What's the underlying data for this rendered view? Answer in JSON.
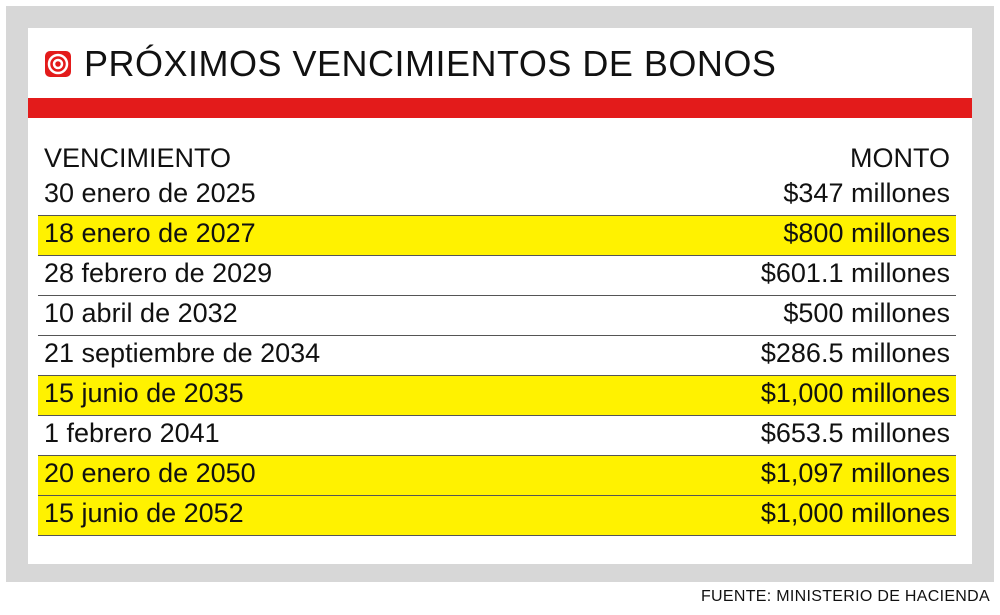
{
  "header": {
    "title": "PRÓXIMOS VENCIMIENTOS DE BONOS",
    "icon": "target-icon",
    "accent_color": "#e31b1b",
    "highlight_color": "#fff200"
  },
  "chart_data": {
    "type": "table",
    "title": "PRÓXIMOS VENCIMIENTOS DE BONOS",
    "columns": [
      "VENCIMIENTO",
      "MONTO"
    ],
    "rows": [
      {
        "date": "30 enero de 2025",
        "amount": "$347 millones",
        "highlight": false
      },
      {
        "date": "18 enero de 2027",
        "amount": "$800 millones",
        "highlight": true
      },
      {
        "date": "28 febrero de 2029",
        "amount": "$601.1 millones",
        "highlight": false
      },
      {
        "date": "10 abril de 2032",
        "amount": "$500 millones",
        "highlight": false
      },
      {
        "date": "21 septiembre de 2034",
        "amount": "$286.5 millones",
        "highlight": false
      },
      {
        "date": "15 junio de 2035",
        "amount": "$1,000 millones",
        "highlight": true
      },
      {
        "date": "1 febrero 2041",
        "amount": "$653.5 millones",
        "highlight": false
      },
      {
        "date": "20 enero de 2050",
        "amount": "$1,097 millones",
        "highlight": true
      },
      {
        "date": "15 junio de 2052",
        "amount": "$1,000 millones",
        "highlight": true
      }
    ],
    "values_millions": [
      347,
      800,
      601.1,
      500,
      286.5,
      1000,
      653.5,
      1097,
      1000
    ]
  },
  "footer": {
    "source": "FUENTE: MINISTERIO DE HACIENDA"
  }
}
